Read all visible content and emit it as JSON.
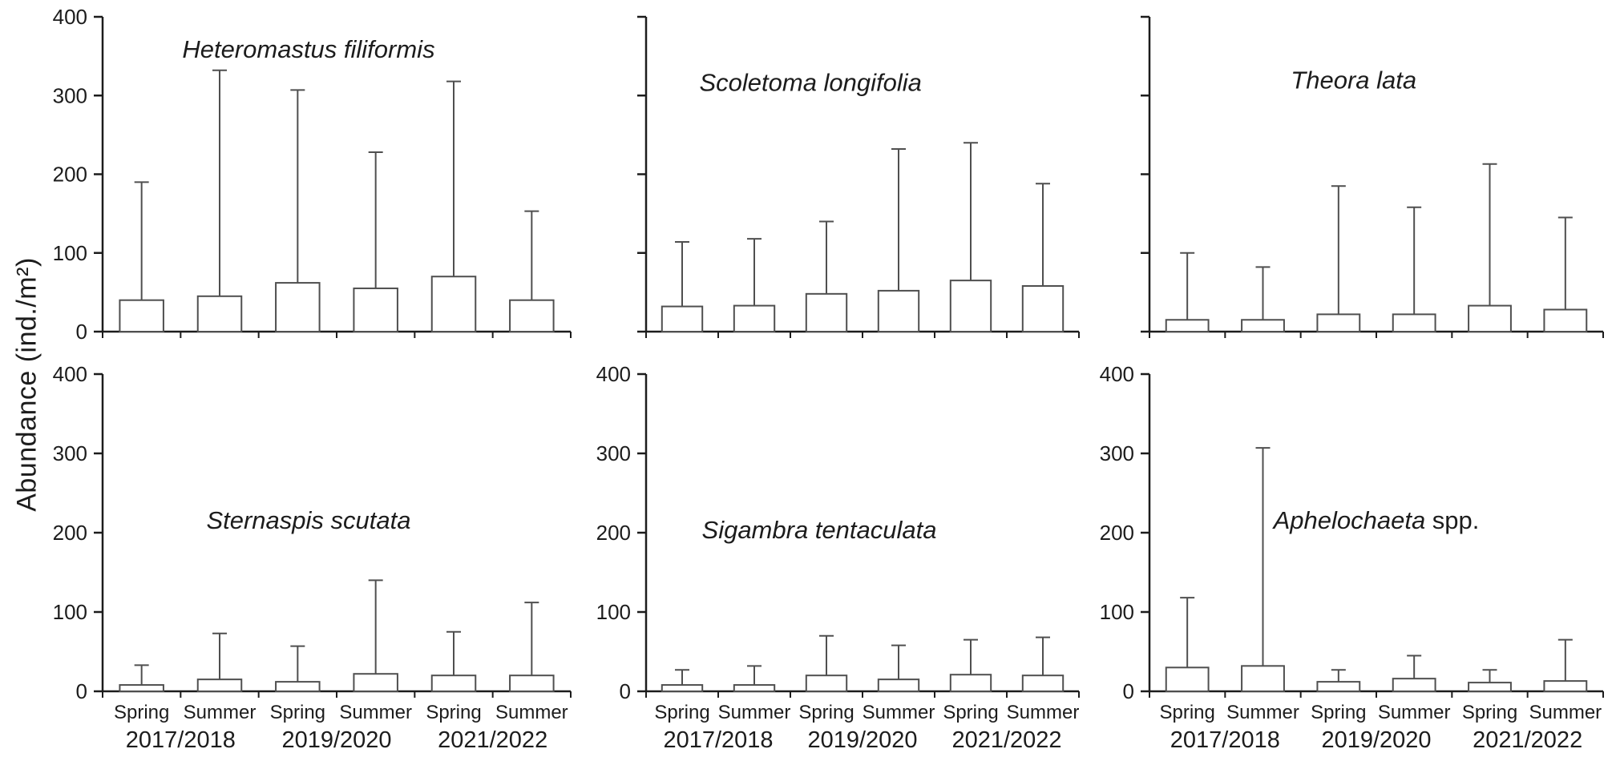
{
  "figure": {
    "ylabel": "Abundance (ind./m²)"
  },
  "axis": {
    "ylim": [
      0,
      400
    ],
    "yticks": [
      0,
      100,
      200,
      300,
      400
    ],
    "season_labels": [
      "Spring",
      "Summer",
      "Spring",
      "Summer",
      "Spring",
      "Summer"
    ],
    "year_labels": [
      "2017/2018",
      "2019/2020",
      "2021/2022"
    ]
  },
  "chart_data": [
    {
      "type": "bar",
      "title": "Heteromastus filiformis",
      "title_suffix": "",
      "categories": [
        "Spring 2017/2018",
        "Summer 2017/2018",
        "Spring 2019/2020",
        "Summer 2019/2020",
        "Spring 2021/2022",
        "Summer 2021/2022"
      ],
      "values": [
        40,
        45,
        62,
        55,
        70,
        40
      ],
      "error_upper": [
        190,
        332,
        307,
        228,
        318,
        153
      ],
      "ylim": [
        0,
        400
      ],
      "yticks": [
        0,
        100,
        200,
        300,
        400
      ],
      "show_ytick_labels": true,
      "show_xtick_labels": false,
      "title_pos": {
        "x_frac": 0.44,
        "y_value": 348
      }
    },
    {
      "type": "bar",
      "title": "Scoletoma longifolia",
      "title_suffix": "",
      "categories": [
        "Spring 2017/2018",
        "Summer 2017/2018",
        "Spring 2019/2020",
        "Summer 2019/2020",
        "Spring 2021/2022",
        "Summer 2021/2022"
      ],
      "values": [
        32,
        33,
        48,
        52,
        65,
        58
      ],
      "error_upper": [
        114,
        118,
        140,
        232,
        240,
        188
      ],
      "ylim": [
        0,
        400
      ],
      "yticks": [
        0,
        100,
        200,
        300,
        400
      ],
      "show_ytick_labels": false,
      "show_xtick_labels": false,
      "title_pos": {
        "x_frac": 0.38,
        "y_value": 306
      }
    },
    {
      "type": "bar",
      "title": "Theora lata",
      "title_suffix": "",
      "categories": [
        "Spring 2017/2018",
        "Summer 2017/2018",
        "Spring 2019/2020",
        "Summer 2019/2020",
        "Spring 2021/2022",
        "Summer 2021/2022"
      ],
      "values": [
        15,
        15,
        22,
        22,
        33,
        28
      ],
      "error_upper": [
        100,
        82,
        185,
        158,
        213,
        145
      ],
      "ylim": [
        0,
        400
      ],
      "yticks": [
        0,
        100,
        200,
        300,
        400
      ],
      "show_ytick_labels": false,
      "show_xtick_labels": false,
      "title_pos": {
        "x_frac": 0.45,
        "y_value": 309
      }
    },
    {
      "type": "bar",
      "title": "Sternaspis scutata",
      "title_suffix": "",
      "categories": [
        "Spring 2017/2018",
        "Summer 2017/2018",
        "Spring 2019/2020",
        "Summer 2019/2020",
        "Spring 2021/2022",
        "Summer 2021/2022"
      ],
      "values": [
        8,
        15,
        12,
        22,
        20,
        20
      ],
      "error_upper": [
        33,
        73,
        57,
        140,
        75,
        112
      ],
      "ylim": [
        0,
        400
      ],
      "yticks": [
        0,
        100,
        200,
        300,
        400
      ],
      "show_ytick_labels": true,
      "show_xtick_labels": true,
      "title_pos": {
        "x_frac": 0.44,
        "y_value": 205
      }
    },
    {
      "type": "bar",
      "title": "Sigambra tentaculata",
      "title_suffix": "",
      "categories": [
        "Spring 2017/2018",
        "Summer 2017/2018",
        "Spring 2019/2020",
        "Summer 2019/2020",
        "Spring 2021/2022",
        "Summer 2021/2022"
      ],
      "values": [
        8,
        8,
        20,
        15,
        21,
        20
      ],
      "error_upper": [
        27,
        32,
        70,
        58,
        65,
        68
      ],
      "ylim": [
        0,
        400
      ],
      "yticks": [
        0,
        100,
        200,
        300,
        400
      ],
      "show_ytick_labels": true,
      "show_xtick_labels": true,
      "title_pos": {
        "x_frac": 0.4,
        "y_value": 193
      }
    },
    {
      "type": "bar",
      "title": "Aphelochaeta",
      "title_suffix": " spp.",
      "categories": [
        "Spring 2017/2018",
        "Summer 2017/2018",
        "Spring 2019/2020",
        "Summer 2019/2020",
        "Spring 2021/2022",
        "Summer 2021/2022"
      ],
      "values": [
        30,
        32,
        12,
        16,
        11,
        13
      ],
      "error_upper": [
        118,
        307,
        27,
        45,
        27,
        65
      ],
      "ylim": [
        0,
        400
      ],
      "yticks": [
        0,
        100,
        200,
        300,
        400
      ],
      "show_ytick_labels": true,
      "show_xtick_labels": true,
      "title_pos": {
        "x_frac": 0.5,
        "y_value": 205
      }
    }
  ]
}
